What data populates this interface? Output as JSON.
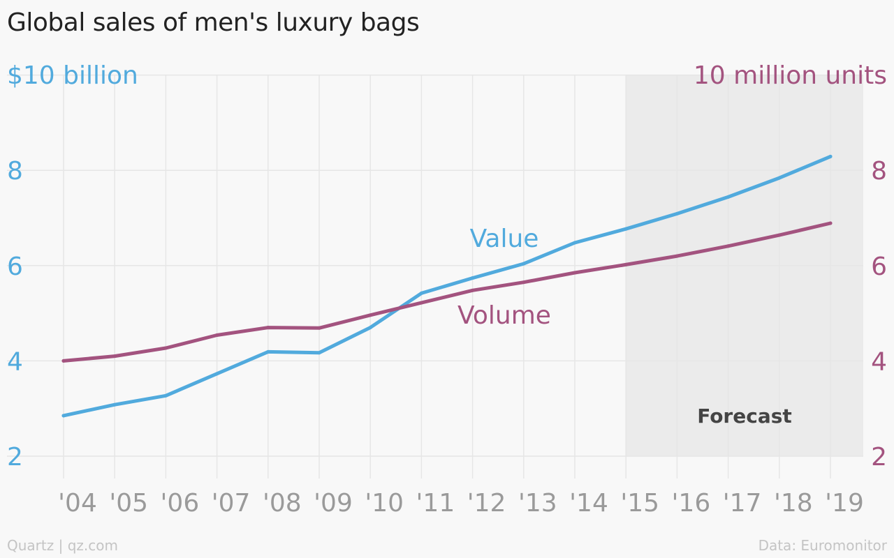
{
  "chart_data": {
    "type": "line",
    "title": "Global sales of men's luxury bags",
    "left_axis_label": "$10 billion",
    "right_axis_label": "10 million units",
    "x": [
      "'04",
      "'05",
      "'06",
      "'07",
      "'08",
      "'09",
      "'10",
      "'11",
      "'12",
      "'13",
      "'14",
      "'15",
      "'16",
      "'17",
      "'18",
      "'19"
    ],
    "left_ylim": [
      2,
      10
    ],
    "right_ylim": [
      2,
      10
    ],
    "y_ticks": [
      2,
      4,
      6,
      8
    ],
    "series": [
      {
        "name": "Value",
        "axis": "left",
        "color": "#51aadd",
        "values": [
          2.85,
          3.08,
          3.27,
          3.73,
          4.19,
          4.17,
          4.7,
          5.42,
          5.74,
          6.04,
          6.48,
          6.77,
          7.09,
          7.44,
          7.84,
          8.29
        ]
      },
      {
        "name": "Volume",
        "axis": "right",
        "color": "#a3537f",
        "values": [
          4.0,
          4.1,
          4.27,
          4.54,
          4.7,
          4.69,
          4.96,
          5.22,
          5.48,
          5.65,
          5.85,
          6.02,
          6.2,
          6.41,
          6.64,
          6.89
        ]
      }
    ],
    "forecast": {
      "label": "Forecast",
      "from": "'15",
      "to": "'19"
    },
    "grid": true
  },
  "colors": {
    "value": "#51aadd",
    "volume": "#a3537f",
    "x_tick": "#9a9a9a",
    "forecast_band": "#ebebeb",
    "grid": "#e6e6e6"
  },
  "footer": {
    "source_left": "Quartz | qz.com",
    "source_right": "Data: Euromonitor"
  }
}
